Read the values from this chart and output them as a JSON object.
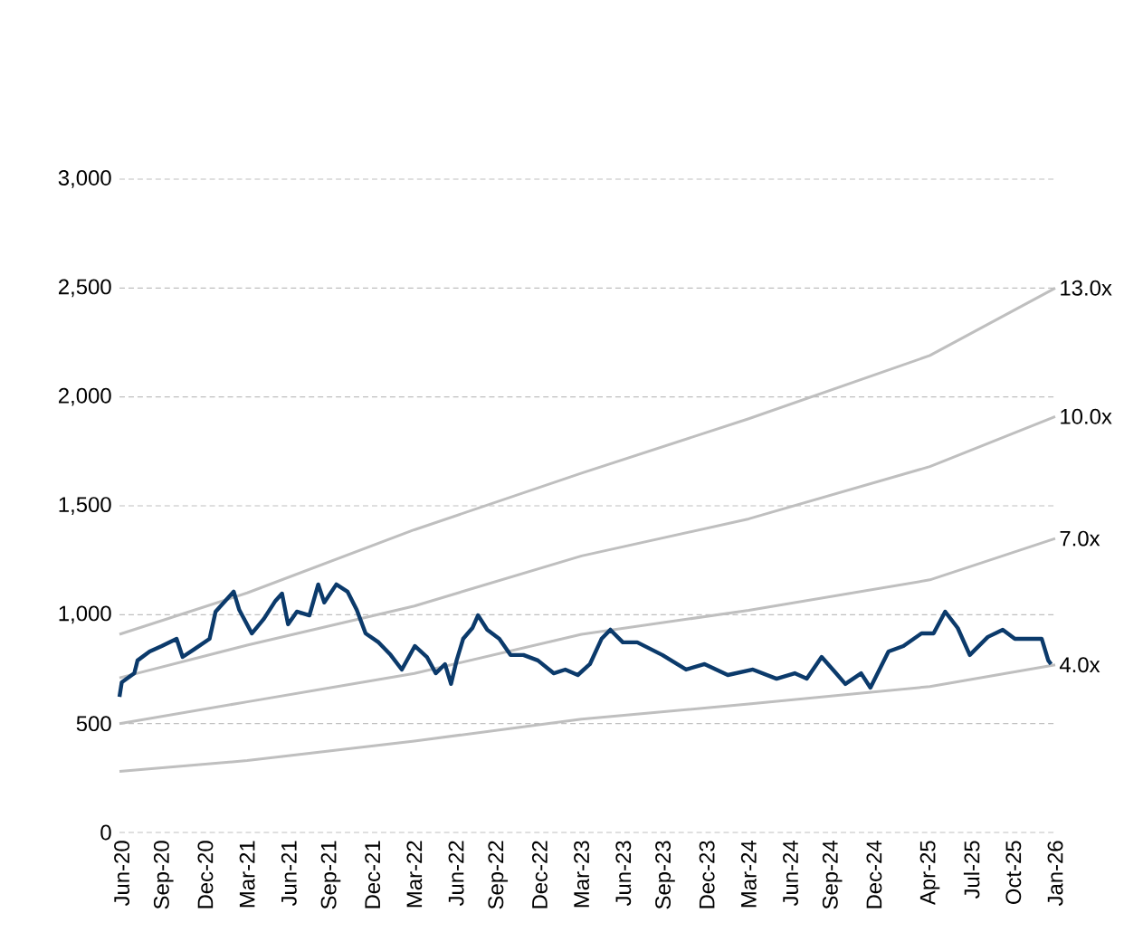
{
  "chart_data": {
    "type": "line",
    "xlim": [
      "2020-05-26",
      "2026-01"
    ],
    "xticks": [
      {
        "value": "2020-06",
        "label": "Jun-20"
      },
      {
        "value": "2020-09",
        "label": "Sep-20"
      },
      {
        "value": "2020-12",
        "label": "Dec-20"
      },
      {
        "value": "2021-03",
        "label": "Mar-21"
      },
      {
        "value": "2021-06",
        "label": "Jun-21"
      },
      {
        "value": "2021-09",
        "label": "Sep-21"
      },
      {
        "value": "2021-12",
        "label": "Dec-21"
      },
      {
        "value": "2022-03",
        "label": "Mar-22"
      },
      {
        "value": "2022-06",
        "label": "Jun-22"
      },
      {
        "value": "2022-09",
        "label": "Sep-22"
      },
      {
        "value": "2022-12",
        "label": "Dec-22"
      },
      {
        "value": "2023-03",
        "label": "Mar-23"
      },
      {
        "value": "2023-06",
        "label": "Jun-23"
      },
      {
        "value": "2023-09",
        "label": "Sep-23"
      },
      {
        "value": "2023-12",
        "label": "Dec-23"
      },
      {
        "value": "2024-03",
        "label": "Mar-24"
      },
      {
        "value": "2024-06",
        "label": "Jun-24"
      },
      {
        "value": "2024-09",
        "label": "Sep-24"
      },
      {
        "value": "2024-12",
        "label": "Dec-24"
      },
      {
        "value": "2025-04",
        "label": "Apr-25"
      },
      {
        "value": "2025-07",
        "label": "Jul-25"
      },
      {
        "value": "2025-10",
        "label": "Oct-25"
      },
      {
        "value": "2026-01",
        "label": "Jan-26"
      }
    ],
    "ylim": [
      0,
      3000
    ],
    "yticks": [
      0,
      {
        "value": 500,
        "label": "500"
      },
      {
        "value": 1000,
        "label": "1,000"
      },
      {
        "value": 1500,
        "label": "1,500"
      },
      {
        "value": 2000,
        "label": "2,000"
      },
      {
        "value": 2500,
        "label": "2,500"
      },
      {
        "value": 3000,
        "label": "3,000"
      }
    ],
    "grid": "y",
    "legend": false,
    "marker": "none",
    "line_style": "solid",
    "series": [
      {
        "name": "13.0x",
        "color": "#bfbfbf",
        "x": [
          "2020-05-26",
          "2021-03",
          "2022-03",
          "2023-03",
          "2024-03",
          "2025-04",
          "2026-01"
        ],
        "values": [
          910,
          1100,
          1390,
          1650,
          1900,
          2190,
          2500
        ]
      },
      {
        "name": "10.0x",
        "color": "#bfbfbf",
        "x": [
          "2020-05-26",
          "2021-03",
          "2022-03",
          "2023-03",
          "2024-03",
          "2025-04",
          "2026-01"
        ],
        "values": [
          710,
          860,
          1040,
          1270,
          1440,
          1680,
          1910
        ]
      },
      {
        "name": "7.0x",
        "color": "#bfbfbf",
        "x": [
          "2020-05-26",
          "2021-03",
          "2022-03",
          "2023-03",
          "2024-03",
          "2025-04",
          "2026-01"
        ],
        "values": [
          500,
          600,
          730,
          910,
          1020,
          1160,
          1350
        ]
      },
      {
        "name": "4.0x",
        "color": "#bfbfbf",
        "x": [
          "2020-05-26",
          "2021-03",
          "2022-03",
          "2023-03",
          "2024-03",
          "2025-04",
          "2026-01"
        ],
        "values": [
          280,
          330,
          420,
          520,
          590,
          670,
          770
        ]
      },
      {
        "color": "#0b3a6b",
        "x": [
          "2020-05-26",
          "2020-06-01",
          "2020-06-28",
          "2020-07-05",
          "2020-07-31",
          "2020-08-27",
          "2020-09-29",
          "2020-10-12",
          "2020-11-06",
          "2020-12-10",
          "2020-12-23",
          "2021-02-02",
          "2021-02-14",
          "2021-03-11",
          "2021-04-07",
          "2021-05-02",
          "2021-05-16",
          "2021-05-29",
          "2021-06-18",
          "2021-07-15",
          "2021-08-04",
          "2021-08-17",
          "2021-09-13",
          "2021-10-07",
          "2021-10-27",
          "2021-11-16",
          "2021-12-14",
          "2022-01-10",
          "2022-02-04",
          "2022-03-02",
          "2022-03-28",
          "2022-04-17",
          "2022-05-07",
          "2022-05-20",
          "2022-06-02",
          "2022-06-16",
          "2022-07-06",
          "2022-07-18",
          "2022-08-08",
          "2022-09-04",
          "2022-09-28",
          "2022-10-26",
          "2022-11-27",
          "2023-01-01",
          "2023-01-26",
          "2023-02-23",
          "2023-03-19",
          "2023-04-14",
          "2023-05-03",
          "2023-05-30",
          "2023-07-01",
          "2023-08-25",
          "2023-10-16",
          "2023-11-26",
          "2024-01-16",
          "2024-03-10",
          "2024-05-01",
          "2024-06-10",
          "2024-07-06",
          "2024-08-08",
          "2024-09-09",
          "2024-09-29",
          "2024-11-03",
          "2024-11-23",
          "2025-01-02",
          "2025-02-04",
          "2025-03-13",
          "2025-04-09",
          "2025-05-04",
          "2025-06-01",
          "2025-06-27",
          "2025-08-06",
          "2025-09-08",
          "2025-10-04",
          "2025-11-06",
          "2025-12-02",
          "2025-12-16",
          "2025-12-22"
        ],
        "values": [
          623,
          690,
          731,
          790,
          831,
          856,
          889,
          806,
          840,
          889,
          1014,
          1106,
          1022,
          914,
          981,
          1064,
          1097,
          956,
          1014,
          997,
          1139,
          1056,
          1139,
          1106,
          1022,
          914,
          873,
          815,
          748,
          856,
          806,
          731,
          773,
          682,
          790,
          889,
          939,
          997,
          931,
          889,
          815,
          815,
          790,
          731,
          748,
          723,
          773,
          889,
          931,
          873,
          873,
          815,
          748,
          773,
          723,
          748,
          706,
          731,
          706,
          806,
          731,
          682,
          731,
          665,
          831,
          856,
          914,
          914,
          1014,
          939,
          815,
          898,
          931,
          889,
          889,
          889,
          790,
          773
        ]
      }
    ]
  }
}
